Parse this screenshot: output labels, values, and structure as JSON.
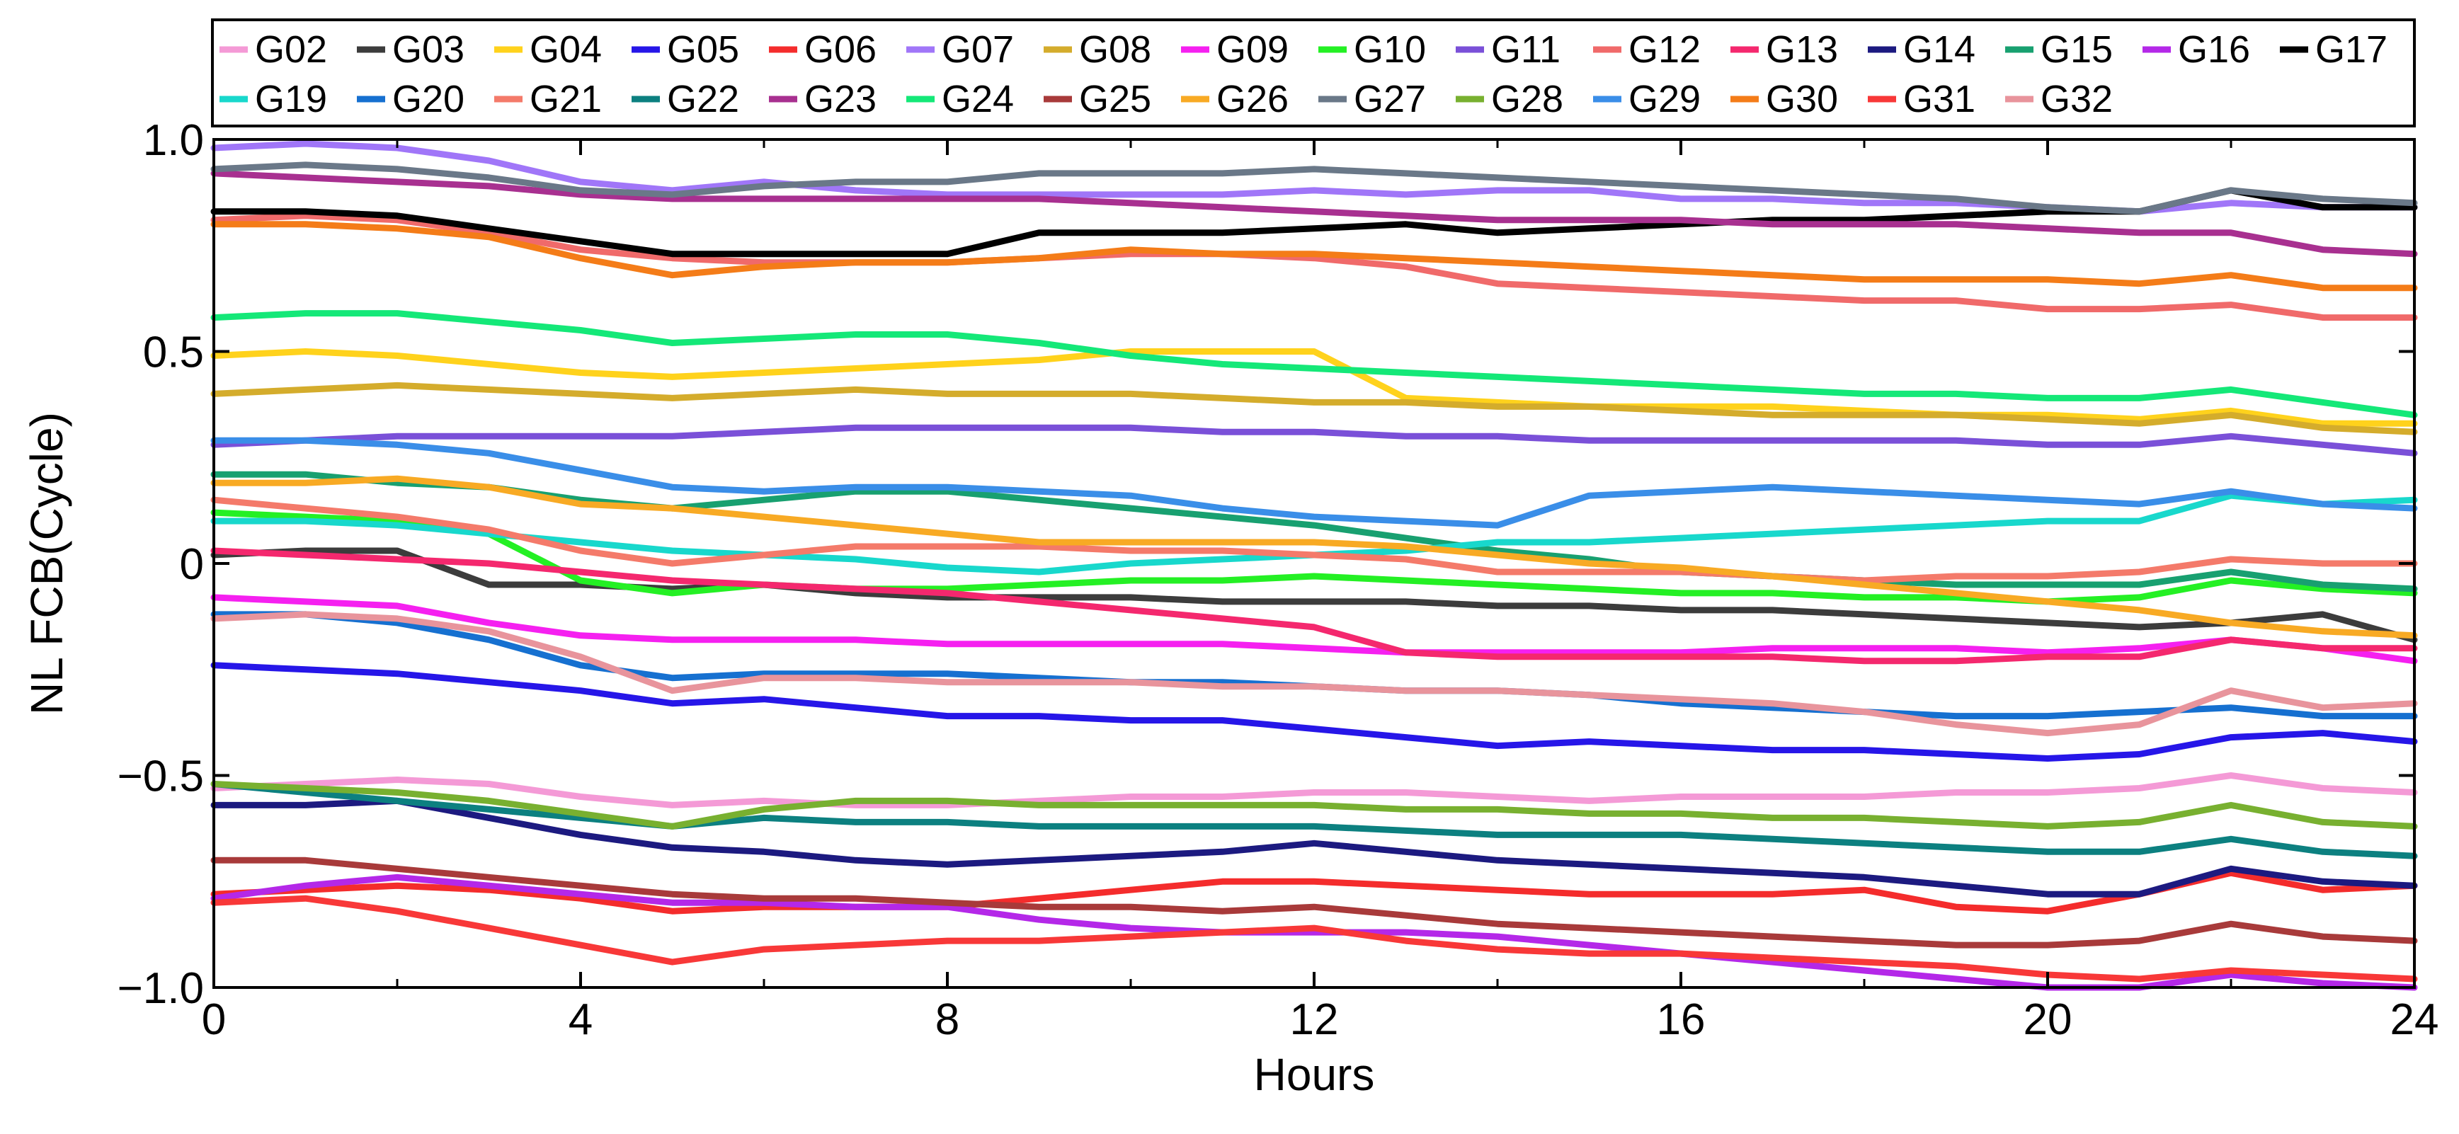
{
  "chart_data": {
    "type": "line",
    "title": "",
    "xlabel": "Hours",
    "ylabel": "NL FCB(Cycle)",
    "xlim": [
      0,
      24
    ],
    "ylim": [
      -1.0,
      1.0
    ],
    "x_ticks": [
      0,
      4,
      8,
      12,
      16,
      20,
      24
    ],
    "x_tick_labels": [
      "0",
      "4",
      "8",
      "12",
      "16",
      "20",
      "24"
    ],
    "y_ticks": [
      1.0,
      0.5,
      0,
      -0.5,
      -1.0
    ],
    "y_tick_labels": [
      "1.0",
      "0.5",
      "0",
      "−0.5",
      "−1.0"
    ],
    "grid": false,
    "legend_position": "top",
    "x": [
      0,
      1,
      2,
      3,
      4,
      5,
      6,
      7,
      8,
      9,
      10,
      11,
      12,
      13,
      14,
      15,
      16,
      17,
      18,
      19,
      20,
      21,
      22,
      23,
      24
    ],
    "series": [
      {
        "name": "G02",
        "color": "#f49ad6",
        "values": [
          -0.53,
          -0.52,
          -0.51,
          -0.52,
          -0.55,
          -0.57,
          -0.56,
          -0.57,
          -0.57,
          -0.56,
          -0.55,
          -0.55,
          -0.54,
          -0.54,
          -0.55,
          -0.56,
          -0.55,
          -0.55,
          -0.55,
          -0.54,
          -0.54,
          -0.53,
          -0.5,
          -0.53,
          -0.54
        ]
      },
      {
        "name": "G03",
        "color": "#3c3c3c",
        "values": [
          0.02,
          0.03,
          0.03,
          -0.05,
          -0.05,
          -0.06,
          -0.05,
          -0.07,
          -0.08,
          -0.08,
          -0.08,
          -0.09,
          -0.09,
          -0.09,
          -0.1,
          -0.1,
          -0.11,
          -0.11,
          -0.12,
          -0.13,
          -0.14,
          -0.15,
          -0.14,
          -0.12,
          -0.18
        ]
      },
      {
        "name": "G04",
        "color": "#ffd21c",
        "values": [
          0.49,
          0.5,
          0.49,
          0.47,
          0.45,
          0.44,
          0.45,
          0.46,
          0.47,
          0.48,
          0.5,
          0.5,
          0.5,
          0.39,
          0.38,
          0.37,
          0.37,
          0.37,
          0.36,
          0.35,
          0.35,
          0.34,
          0.36,
          0.33,
          0.33
        ]
      },
      {
        "name": "G05",
        "color": "#2616e8",
        "values": [
          -0.24,
          -0.25,
          -0.26,
          -0.28,
          -0.3,
          -0.33,
          -0.32,
          -0.34,
          -0.36,
          -0.36,
          -0.37,
          -0.37,
          -0.39,
          -0.41,
          -0.43,
          -0.42,
          -0.43,
          -0.44,
          -0.44,
          -0.45,
          -0.46,
          -0.45,
          -0.41,
          -0.4,
          -0.42
        ]
      },
      {
        "name": "G06",
        "color": "#f42c2c",
        "values": [
          -0.78,
          -0.77,
          -0.76,
          -0.77,
          -0.79,
          -0.82,
          -0.81,
          -0.81,
          -0.81,
          -0.79,
          -0.77,
          -0.75,
          -0.75,
          -0.76,
          -0.77,
          -0.78,
          -0.78,
          -0.78,
          -0.77,
          -0.81,
          -0.82,
          -0.78,
          -0.73,
          -0.77,
          -0.76
        ]
      },
      {
        "name": "G07",
        "color": "#a076f8",
        "values": [
          0.98,
          0.99,
          0.98,
          0.95,
          0.9,
          0.88,
          0.9,
          0.88,
          0.87,
          0.87,
          0.87,
          0.87,
          0.88,
          0.87,
          0.88,
          0.88,
          0.86,
          0.86,
          0.85,
          0.85,
          0.84,
          0.83,
          0.85,
          0.84,
          0.84
        ]
      },
      {
        "name": "G08",
        "color": "#d4ac2c",
        "values": [
          0.4,
          0.41,
          0.42,
          0.41,
          0.4,
          0.39,
          0.4,
          0.41,
          0.4,
          0.4,
          0.4,
          0.39,
          0.38,
          0.38,
          0.37,
          0.37,
          0.36,
          0.35,
          0.35,
          0.35,
          0.34,
          0.33,
          0.35,
          0.32,
          0.31
        ]
      },
      {
        "name": "G09",
        "color": "#f520f0",
        "values": [
          -0.08,
          -0.09,
          -0.1,
          -0.14,
          -0.17,
          -0.18,
          -0.18,
          -0.18,
          -0.19,
          -0.19,
          -0.19,
          -0.19,
          -0.2,
          -0.21,
          -0.21,
          -0.21,
          -0.21,
          -0.2,
          -0.2,
          -0.2,
          -0.21,
          -0.2,
          -0.18,
          -0.2,
          -0.23
        ]
      },
      {
        "name": "G10",
        "color": "#24f024",
        "values": [
          0.12,
          0.11,
          0.1,
          0.07,
          -0.04,
          -0.07,
          -0.05,
          -0.06,
          -0.06,
          -0.05,
          -0.04,
          -0.04,
          -0.03,
          -0.04,
          -0.05,
          -0.06,
          -0.07,
          -0.07,
          -0.08,
          -0.08,
          -0.09,
          -0.08,
          -0.04,
          -0.06,
          -0.07
        ]
      },
      {
        "name": "G11",
        "color": "#7a50d8",
        "values": [
          0.28,
          0.29,
          0.3,
          0.3,
          0.3,
          0.3,
          0.31,
          0.32,
          0.32,
          0.32,
          0.32,
          0.31,
          0.31,
          0.3,
          0.3,
          0.29,
          0.29,
          0.29,
          0.29,
          0.29,
          0.28,
          0.28,
          0.3,
          0.28,
          0.26
        ]
      },
      {
        "name": "G12",
        "color": "#f06a6a",
        "values": [
          0.81,
          0.82,
          0.81,
          0.78,
          0.74,
          0.72,
          0.71,
          0.71,
          0.71,
          0.72,
          0.73,
          0.73,
          0.72,
          0.7,
          0.66,
          0.65,
          0.64,
          0.63,
          0.62,
          0.62,
          0.6,
          0.6,
          0.61,
          0.58,
          0.58
        ]
      },
      {
        "name": "G13",
        "color": "#f4286e",
        "values": [
          0.03,
          0.02,
          0.01,
          0.0,
          -0.02,
          -0.04,
          -0.05,
          -0.06,
          -0.07,
          -0.09,
          -0.11,
          -0.13,
          -0.15,
          -0.21,
          -0.22,
          -0.22,
          -0.22,
          -0.22,
          -0.23,
          -0.23,
          -0.22,
          -0.22,
          -0.18,
          -0.2,
          -0.2
        ]
      },
      {
        "name": "G14",
        "color": "#1c1a80",
        "values": [
          -0.57,
          -0.57,
          -0.56,
          -0.6,
          -0.64,
          -0.67,
          -0.68,
          -0.7,
          -0.71,
          -0.7,
          -0.69,
          -0.68,
          -0.66,
          -0.68,
          -0.7,
          -0.71,
          -0.72,
          -0.73,
          -0.74,
          -0.76,
          -0.78,
          -0.78,
          -0.72,
          -0.75,
          -0.76
        ]
      },
      {
        "name": "G15",
        "color": "#18a070",
        "values": [
          0.21,
          0.21,
          0.19,
          0.18,
          0.15,
          0.13,
          0.15,
          0.17,
          0.17,
          0.15,
          0.13,
          0.11,
          0.09,
          0.06,
          0.03,
          0.01,
          -0.02,
          -0.03,
          -0.04,
          -0.05,
          -0.05,
          -0.05,
          -0.02,
          -0.05,
          -0.06
        ]
      },
      {
        "name": "G16",
        "color": "#b428e8",
        "values": [
          -0.79,
          -0.76,
          -0.74,
          -0.76,
          -0.78,
          -0.8,
          -0.8,
          -0.81,
          -0.81,
          -0.84,
          -0.86,
          -0.87,
          -0.87,
          -0.87,
          -0.88,
          -0.9,
          -0.92,
          -0.94,
          -0.96,
          -0.98,
          -1.0,
          -1.0,
          -0.97,
          -0.99,
          -1.0
        ]
      },
      {
        "name": "G17",
        "color": "#000000",
        "values": [
          0.83,
          0.83,
          0.82,
          0.79,
          0.76,
          0.73,
          0.73,
          0.73,
          0.73,
          0.78,
          0.78,
          0.78,
          0.79,
          0.8,
          0.78,
          0.79,
          0.8,
          0.81,
          0.81,
          0.82,
          0.83,
          0.83,
          0.88,
          0.84,
          0.84
        ]
      },
      {
        "name": "G19",
        "color": "#18d8cc",
        "values": [
          0.1,
          0.1,
          0.09,
          0.07,
          0.05,
          0.03,
          0.02,
          0.01,
          -0.01,
          -0.02,
          0.0,
          0.01,
          0.02,
          0.03,
          0.05,
          0.05,
          0.06,
          0.07,
          0.08,
          0.09,
          0.1,
          0.1,
          0.16,
          0.14,
          0.15
        ]
      },
      {
        "name": "G20",
        "color": "#1670d0",
        "values": [
          -0.12,
          -0.12,
          -0.14,
          -0.18,
          -0.24,
          -0.27,
          -0.26,
          -0.26,
          -0.26,
          -0.27,
          -0.28,
          -0.28,
          -0.29,
          -0.3,
          -0.3,
          -0.31,
          -0.33,
          -0.34,
          -0.35,
          -0.36,
          -0.36,
          -0.35,
          -0.34,
          -0.36,
          -0.36
        ]
      },
      {
        "name": "G21",
        "color": "#f47a6a",
        "values": [
          0.15,
          0.13,
          0.11,
          0.08,
          0.03,
          0.0,
          0.02,
          0.04,
          0.04,
          0.04,
          0.03,
          0.03,
          0.02,
          0.01,
          -0.02,
          -0.02,
          -0.02,
          -0.03,
          -0.04,
          -0.03,
          -0.03,
          -0.02,
          0.01,
          0.0,
          0.0
        ]
      },
      {
        "name": "G22",
        "color": "#0c8080",
        "values": [
          -0.52,
          -0.54,
          -0.56,
          -0.58,
          -0.6,
          -0.62,
          -0.6,
          -0.61,
          -0.61,
          -0.62,
          -0.62,
          -0.62,
          -0.62,
          -0.63,
          -0.64,
          -0.64,
          -0.64,
          -0.65,
          -0.66,
          -0.67,
          -0.68,
          -0.68,
          -0.65,
          -0.68,
          -0.69
        ]
      },
      {
        "name": "G23",
        "color": "#a83090",
        "values": [
          0.92,
          0.91,
          0.9,
          0.89,
          0.87,
          0.86,
          0.86,
          0.86,
          0.86,
          0.86,
          0.85,
          0.84,
          0.83,
          0.82,
          0.81,
          0.81,
          0.81,
          0.8,
          0.8,
          0.8,
          0.79,
          0.78,
          0.78,
          0.74,
          0.73
        ]
      },
      {
        "name": "G24",
        "color": "#14e878",
        "values": [
          0.58,
          0.59,
          0.59,
          0.57,
          0.55,
          0.52,
          0.53,
          0.54,
          0.54,
          0.52,
          0.49,
          0.47,
          0.46,
          0.45,
          0.44,
          0.43,
          0.42,
          0.41,
          0.4,
          0.4,
          0.39,
          0.39,
          0.41,
          0.38,
          0.35
        ]
      },
      {
        "name": "G25",
        "color": "#a83a3a",
        "values": [
          -0.7,
          -0.7,
          -0.72,
          -0.74,
          -0.76,
          -0.78,
          -0.79,
          -0.79,
          -0.8,
          -0.81,
          -0.81,
          -0.82,
          -0.81,
          -0.83,
          -0.85,
          -0.86,
          -0.87,
          -0.88,
          -0.89,
          -0.9,
          -0.9,
          -0.89,
          -0.85,
          -0.88,
          -0.89
        ]
      },
      {
        "name": "G26",
        "color": "#f8aa24",
        "values": [
          0.19,
          0.19,
          0.2,
          0.18,
          0.14,
          0.13,
          0.11,
          0.09,
          0.07,
          0.05,
          0.05,
          0.05,
          0.05,
          0.04,
          0.02,
          0.0,
          -0.01,
          -0.03,
          -0.05,
          -0.07,
          -0.09,
          -0.11,
          -0.14,
          -0.16,
          -0.17
        ]
      },
      {
        "name": "G27",
        "color": "#6a7888",
        "values": [
          0.93,
          0.94,
          0.93,
          0.91,
          0.88,
          0.87,
          0.89,
          0.9,
          0.9,
          0.92,
          0.92,
          0.92,
          0.93,
          0.92,
          0.91,
          0.9,
          0.89,
          0.88,
          0.87,
          0.86,
          0.84,
          0.83,
          0.88,
          0.86,
          0.85
        ]
      },
      {
        "name": "G28",
        "color": "#78b030",
        "values": [
          -0.52,
          -0.53,
          -0.54,
          -0.56,
          -0.59,
          -0.62,
          -0.58,
          -0.56,
          -0.56,
          -0.57,
          -0.57,
          -0.57,
          -0.57,
          -0.58,
          -0.58,
          -0.59,
          -0.59,
          -0.6,
          -0.6,
          -0.61,
          -0.62,
          -0.61,
          -0.57,
          -0.61,
          -0.62
        ]
      },
      {
        "name": "G29",
        "color": "#3a8ee8",
        "values": [
          0.29,
          0.29,
          0.28,
          0.26,
          0.22,
          0.18,
          0.17,
          0.18,
          0.18,
          0.17,
          0.16,
          0.13,
          0.11,
          0.1,
          0.09,
          0.16,
          0.17,
          0.18,
          0.17,
          0.16,
          0.15,
          0.14,
          0.17,
          0.14,
          0.13
        ]
      },
      {
        "name": "G30",
        "color": "#f47c18",
        "values": [
          0.8,
          0.8,
          0.79,
          0.77,
          0.72,
          0.68,
          0.7,
          0.71,
          0.71,
          0.72,
          0.74,
          0.73,
          0.73,
          0.72,
          0.71,
          0.7,
          0.69,
          0.68,
          0.67,
          0.67,
          0.67,
          0.66,
          0.68,
          0.65,
          0.65
        ]
      },
      {
        "name": "G31",
        "color": "#f83838",
        "values": [
          -0.8,
          -0.79,
          -0.82,
          -0.86,
          -0.9,
          -0.94,
          -0.91,
          -0.9,
          -0.89,
          -0.89,
          -0.88,
          -0.87,
          -0.86,
          -0.89,
          -0.91,
          -0.92,
          -0.92,
          -0.93,
          -0.94,
          -0.95,
          -0.97,
          -0.98,
          -0.96,
          -0.97,
          -0.98
        ]
      },
      {
        "name": "G32",
        "color": "#e8949c",
        "values": [
          -0.13,
          -0.12,
          -0.13,
          -0.16,
          -0.22,
          -0.3,
          -0.27,
          -0.27,
          -0.28,
          -0.28,
          -0.28,
          -0.29,
          -0.29,
          -0.3,
          -0.3,
          -0.31,
          -0.32,
          -0.33,
          -0.35,
          -0.38,
          -0.4,
          -0.38,
          -0.3,
          -0.34,
          -0.33
        ]
      }
    ]
  }
}
